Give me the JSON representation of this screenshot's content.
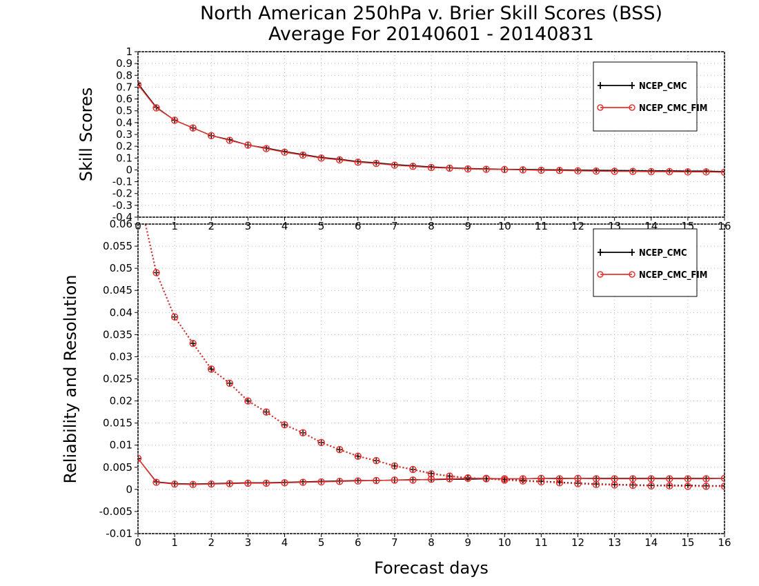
{
  "title_line1": "North American 250hPa v. Brier Skill Scores (BSS)",
  "title_line2": "Average For 20140601 - 20140831",
  "xlabel": "Forecast days",
  "colors": {
    "ncep_cmc": "#000000",
    "ncep_cmc_fim": "#e8322e"
  },
  "chart_data": [
    {
      "type": "line",
      "ylabel": "Skill Scores",
      "xlim": [
        0,
        16
      ],
      "ylim": [
        -0.4,
        1
      ],
      "grid": true,
      "legend_position": "top-right",
      "x_ticks": [
        "0",
        "1",
        "2",
        "3",
        "4",
        "5",
        "6",
        "7",
        "8",
        "9",
        "10",
        "11",
        "12",
        "13",
        "14",
        "15",
        "16"
      ],
      "y_ticks": [
        "1",
        "0.9",
        "0.8",
        "0.7",
        "0.6",
        "0.5",
        "0.4",
        "0.3",
        "0.2",
        "0.1",
        "0",
        "-0.1",
        "-0.2",
        "-0.3",
        "-0.4"
      ],
      "x": [
        0,
        0.5,
        1,
        1.5,
        2,
        2.5,
        3,
        3.5,
        4,
        4.5,
        5,
        5.5,
        6,
        6.5,
        7,
        7.5,
        8,
        8.5,
        9,
        9.5,
        10,
        10.5,
        11,
        11.5,
        12,
        12.5,
        13,
        13.5,
        14,
        14.5,
        15,
        15.5,
        16
      ],
      "series": [
        {
          "name": "NCEP_CMC",
          "line_style": "solid",
          "marker": "plus",
          "values": [
            0.73,
            0.53,
            0.42,
            0.355,
            0.29,
            0.255,
            0.21,
            0.185,
            0.155,
            0.13,
            0.105,
            0.09,
            0.07,
            0.06,
            0.045,
            0.035,
            0.025,
            0.018,
            0.012,
            0.008,
            0.005,
            0.004,
            0.002,
            0.0,
            -0.002,
            -0.003,
            -0.005,
            -0.006,
            -0.008,
            -0.008,
            -0.01,
            -0.01,
            -0.015
          ]
        },
        {
          "name": "NCEP_CMC_FIM",
          "line_style": "solid",
          "marker": "circle",
          "values": [
            0.72,
            0.525,
            0.42,
            0.355,
            0.29,
            0.25,
            0.21,
            0.18,
            0.15,
            0.125,
            0.1,
            0.085,
            0.065,
            0.055,
            0.04,
            0.03,
            0.02,
            0.015,
            0.008,
            0.005,
            0.003,
            0.0,
            -0.003,
            -0.005,
            -0.008,
            -0.01,
            -0.012,
            -0.013,
            -0.015,
            -0.015,
            -0.017,
            -0.017,
            -0.02
          ]
        }
      ]
    },
    {
      "type": "line",
      "ylabel": "Reliability and Resolution",
      "xlim": [
        0,
        16
      ],
      "ylim": [
        -0.01,
        0.06
      ],
      "grid": true,
      "legend_position": "top-right",
      "x_ticks": [
        "0",
        "1",
        "2",
        "3",
        "4",
        "5",
        "6",
        "7",
        "8",
        "9",
        "10",
        "11",
        "12",
        "13",
        "14",
        "15",
        "16"
      ],
      "y_ticks": [
        "0.06",
        "0.055",
        "0.05",
        "0.045",
        "0.04",
        "0.035",
        "0.03",
        "0.025",
        "0.02",
        "0.015",
        "0.01",
        "0.005",
        "0",
        "-0.005",
        "-0.01"
      ],
      "x": [
        0,
        0.5,
        1,
        1.5,
        2,
        2.5,
        3,
        3.5,
        4,
        4.5,
        5,
        5.5,
        6,
        6.5,
        7,
        7.5,
        8,
        8.5,
        9,
        9.5,
        10,
        10.5,
        11,
        11.5,
        12,
        12.5,
        13,
        13.5,
        14,
        14.5,
        15,
        15.5,
        16
      ],
      "series": [
        {
          "name": "NCEP_CMC",
          "group": "reliability",
          "line_style": "solid",
          "marker": "plus",
          "values": [
            0.007,
            0.0017,
            0.0013,
            0.0012,
            0.0013,
            0.0014,
            0.0015,
            0.0015,
            0.0016,
            0.0017,
            0.0018,
            0.0019,
            0.002,
            0.002,
            0.0021,
            0.0022,
            0.0022,
            0.0023,
            0.0023,
            0.0024,
            0.0024,
            0.0024,
            0.0025,
            0.0025,
            0.0025,
            0.0025,
            0.0025,
            0.0025,
            0.0025,
            0.0025,
            0.0025,
            0.0025,
            0.0025
          ]
        },
        {
          "name": "NCEP_CMC_FIM",
          "group": "reliability",
          "line_style": "solid",
          "marker": "circle",
          "values": [
            0.007,
            0.0016,
            0.0012,
            0.0011,
            0.0012,
            0.0013,
            0.0014,
            0.0014,
            0.0015,
            0.0016,
            0.0017,
            0.0018,
            0.0019,
            0.002,
            0.0021,
            0.0021,
            0.0023,
            0.0024,
            0.0025,
            0.0025,
            0.0024,
            0.0024,
            0.0025,
            0.0024,
            0.0025,
            0.0024,
            0.0024,
            0.0024,
            0.0024,
            0.0024,
            0.0024,
            0.0024,
            0.0025
          ]
        },
        {
          "name": "NCEP_CMC",
          "group": "resolution",
          "line_style": "dotted",
          "marker": "plus",
          "values": [
            0.0675,
            0.049,
            0.039,
            0.033,
            0.0272,
            0.024,
            0.02,
            0.0175,
            0.0146,
            0.0128,
            0.0106,
            0.009,
            0.0075,
            0.0065,
            0.0053,
            0.0045,
            0.0036,
            0.003,
            0.0026,
            0.0024,
            0.0022,
            0.002,
            0.0018,
            0.0016,
            0.0014,
            0.0012,
            0.0011,
            0.001,
            0.0009,
            0.0009,
            0.0009,
            0.0008,
            0.0008
          ]
        },
        {
          "name": "NCEP_CMC_FIM",
          "group": "resolution",
          "line_style": "dotted",
          "marker": "circle",
          "values": [
            0.0675,
            0.049,
            0.039,
            0.033,
            0.0272,
            0.024,
            0.02,
            0.0175,
            0.0146,
            0.0128,
            0.0106,
            0.009,
            0.0075,
            0.0065,
            0.0053,
            0.0045,
            0.0035,
            0.003,
            0.0026,
            0.0024,
            0.0021,
            0.0019,
            0.0017,
            0.0015,
            0.0013,
            0.0011,
            0.001,
            0.0009,
            0.0008,
            0.0008,
            0.0007,
            0.0007,
            0.0007
          ]
        }
      ]
    }
  ]
}
